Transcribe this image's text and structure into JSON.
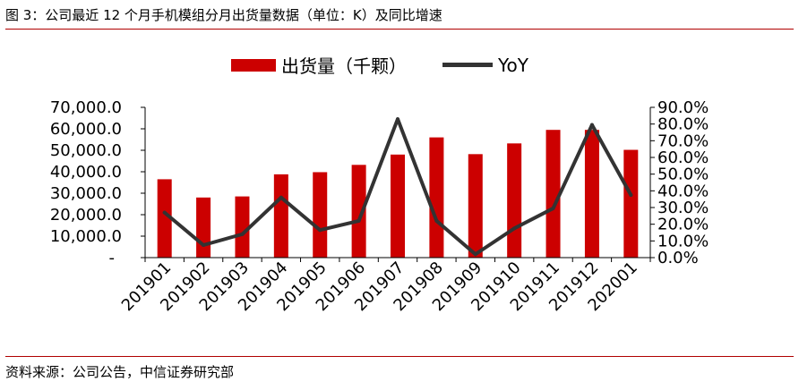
{
  "header": {
    "title": "图 3：公司最近 12 个月手机模组分月出货量数据（单位：K）及同比增速"
  },
  "footer": {
    "source": "资料来源：公司公告，中信证券研究部"
  },
  "colors": {
    "bar": "#cc0000",
    "line": "#333333",
    "rule": "#b00000"
  },
  "chart_data": {
    "type": "bar",
    "categories": [
      "201901",
      "201902",
      "201903",
      "201904",
      "201905",
      "201906",
      "201907",
      "201908",
      "201909",
      "201910",
      "201911",
      "201912",
      "202001"
    ],
    "series": [
      {
        "name": "出货量（千颗）",
        "type": "bar",
        "axis": "left",
        "values": [
          36500,
          28000,
          28500,
          38800,
          39800,
          43200,
          48000,
          56000,
          48200,
          53200,
          59500,
          59500,
          50200
        ]
      },
      {
        "name": "YoY",
        "type": "line",
        "axis": "right",
        "values": [
          0.27,
          0.075,
          0.14,
          0.36,
          0.165,
          0.22,
          0.83,
          0.22,
          0.02,
          0.175,
          0.295,
          0.795,
          0.375
        ]
      }
    ],
    "y_left": {
      "ylim": [
        0,
        70000
      ],
      "ticks": [
        "-",
        "10,000.0",
        "20,000.0",
        "30,000.0",
        "40,000.0",
        "50,000.0",
        "60,000.0",
        "70,000.0"
      ]
    },
    "y_right": {
      "ylim": [
        0,
        0.9
      ],
      "ticks": [
        "0.0%",
        "10.0%",
        "20.0%",
        "30.0%",
        "40.0%",
        "50.0%",
        "60.0%",
        "70.0%",
        "80.0%",
        "90.0%"
      ]
    },
    "legend_position": "top",
    "grid": false
  }
}
